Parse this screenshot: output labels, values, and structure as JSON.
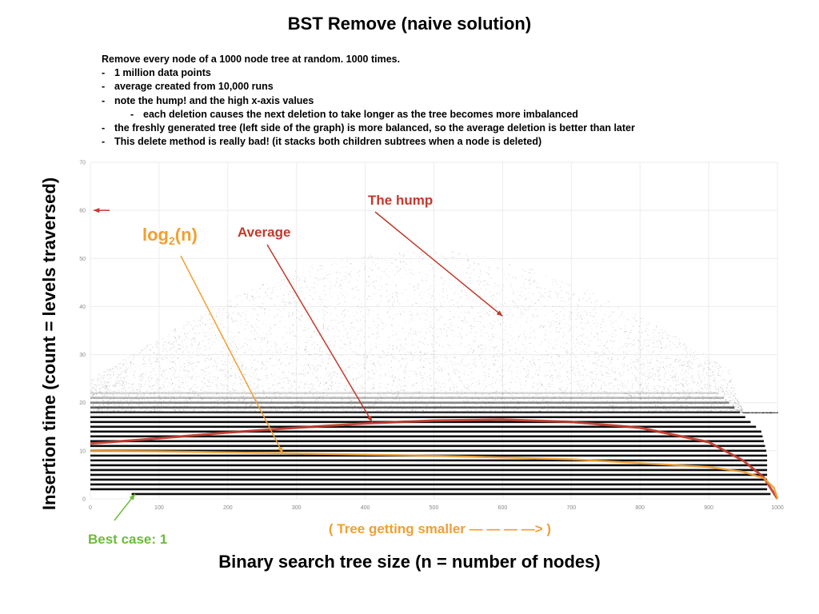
{
  "title": "BST Remove (naive solution)",
  "notes": {
    "intro": "Remove every node of a 1000 node tree at random. 1000 times.",
    "bullets": [
      "1 million data points",
      "average created from 10,000 runs",
      "note the hump! and the high x-axis values",
      "each deletion causes the next deletion to take longer as the tree becomes more imbalanced",
      "the freshly generated tree (left side of the graph) is more balanced, so the average deletion is better than later",
      "This delete method is really bad! (it stacks both children subtrees when a node is deleted)"
    ]
  },
  "colors": {
    "average": "#c0392b",
    "log2": "#f0a030",
    "best_case": "#6dbb3a",
    "points": "#000000"
  },
  "chart_data": {
    "type": "scatter",
    "xlabel": "Binary search tree size (n = number of nodes)",
    "ylabel": "Insertion time (count = levels traversed)",
    "xlim": [
      0,
      1000
    ],
    "ylim": [
      0,
      70
    ],
    "x_ticks": [
      0,
      100,
      200,
      300,
      400,
      500,
      600,
      700,
      800,
      900,
      1000
    ],
    "y_ticks": [
      0,
      10,
      20,
      30,
      40,
      50,
      60,
      70
    ],
    "grid": true,
    "series": [
      {
        "name": "Average",
        "x": [
          0,
          100,
          200,
          300,
          400,
          500,
          600,
          700,
          800,
          900,
          950,
          980,
          1000
        ],
        "y": [
          11.5,
          12.6,
          13.8,
          14.8,
          15.7,
          16.3,
          16.5,
          16.0,
          14.8,
          11.8,
          8.0,
          4.5,
          0
        ]
      },
      {
        "name": "log₂(n)",
        "x": [
          0,
          100,
          300,
          500,
          700,
          900,
          950,
          980,
          995,
          1000
        ],
        "y": [
          9.97,
          9.9,
          9.45,
          8.97,
          8.23,
          6.64,
          5.64,
          4.32,
          2.32,
          0
        ]
      }
    ],
    "annotations": [
      {
        "text": "The hump",
        "target_x": 600,
        "target_y": 38
      },
      {
        "text": "Average",
        "target_x": 410,
        "target_y": 16
      },
      {
        "text": "log₂(n)",
        "target_x": 280,
        "target_y": 9.5
      },
      {
        "text": "Best case: 1",
        "target_x": 65,
        "target_y": 1
      },
      {
        "text": "( Tree getting smaller — —  —  —> )"
      }
    ],
    "high_value_marker_y": 60
  },
  "labels": {
    "hump": "The hump",
    "average": "Average",
    "log_base": "log",
    "log_sub": "2",
    "log_arg": "(n)",
    "best_case": "Best case: 1",
    "tree_smaller": "( Tree getting smaller — —  —  —> )"
  }
}
